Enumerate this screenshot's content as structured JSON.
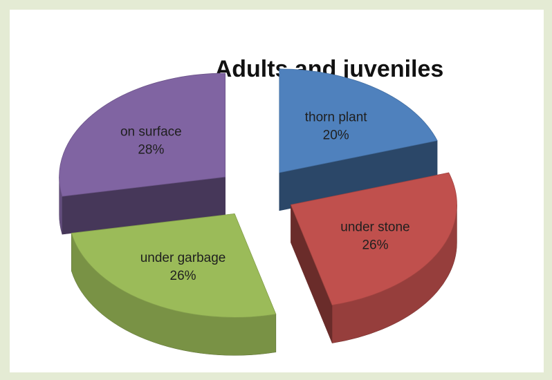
{
  "chart_data": {
    "type": "pie",
    "title": "Adults and juveniles",
    "exploded": true,
    "three_d": true,
    "legend": "none",
    "slices": [
      {
        "label": "thorn plant",
        "value": 20,
        "display": "20%",
        "color": "#4f81bd"
      },
      {
        "label": "under stone",
        "value": 26,
        "display": "26%",
        "color": "#c0504d"
      },
      {
        "label": "under garbage",
        "value": 26,
        "display": "26%",
        "color": "#9bbb59"
      },
      {
        "label": "on surface",
        "value": 28,
        "display": "28%",
        "color": "#8064a2"
      }
    ]
  }
}
